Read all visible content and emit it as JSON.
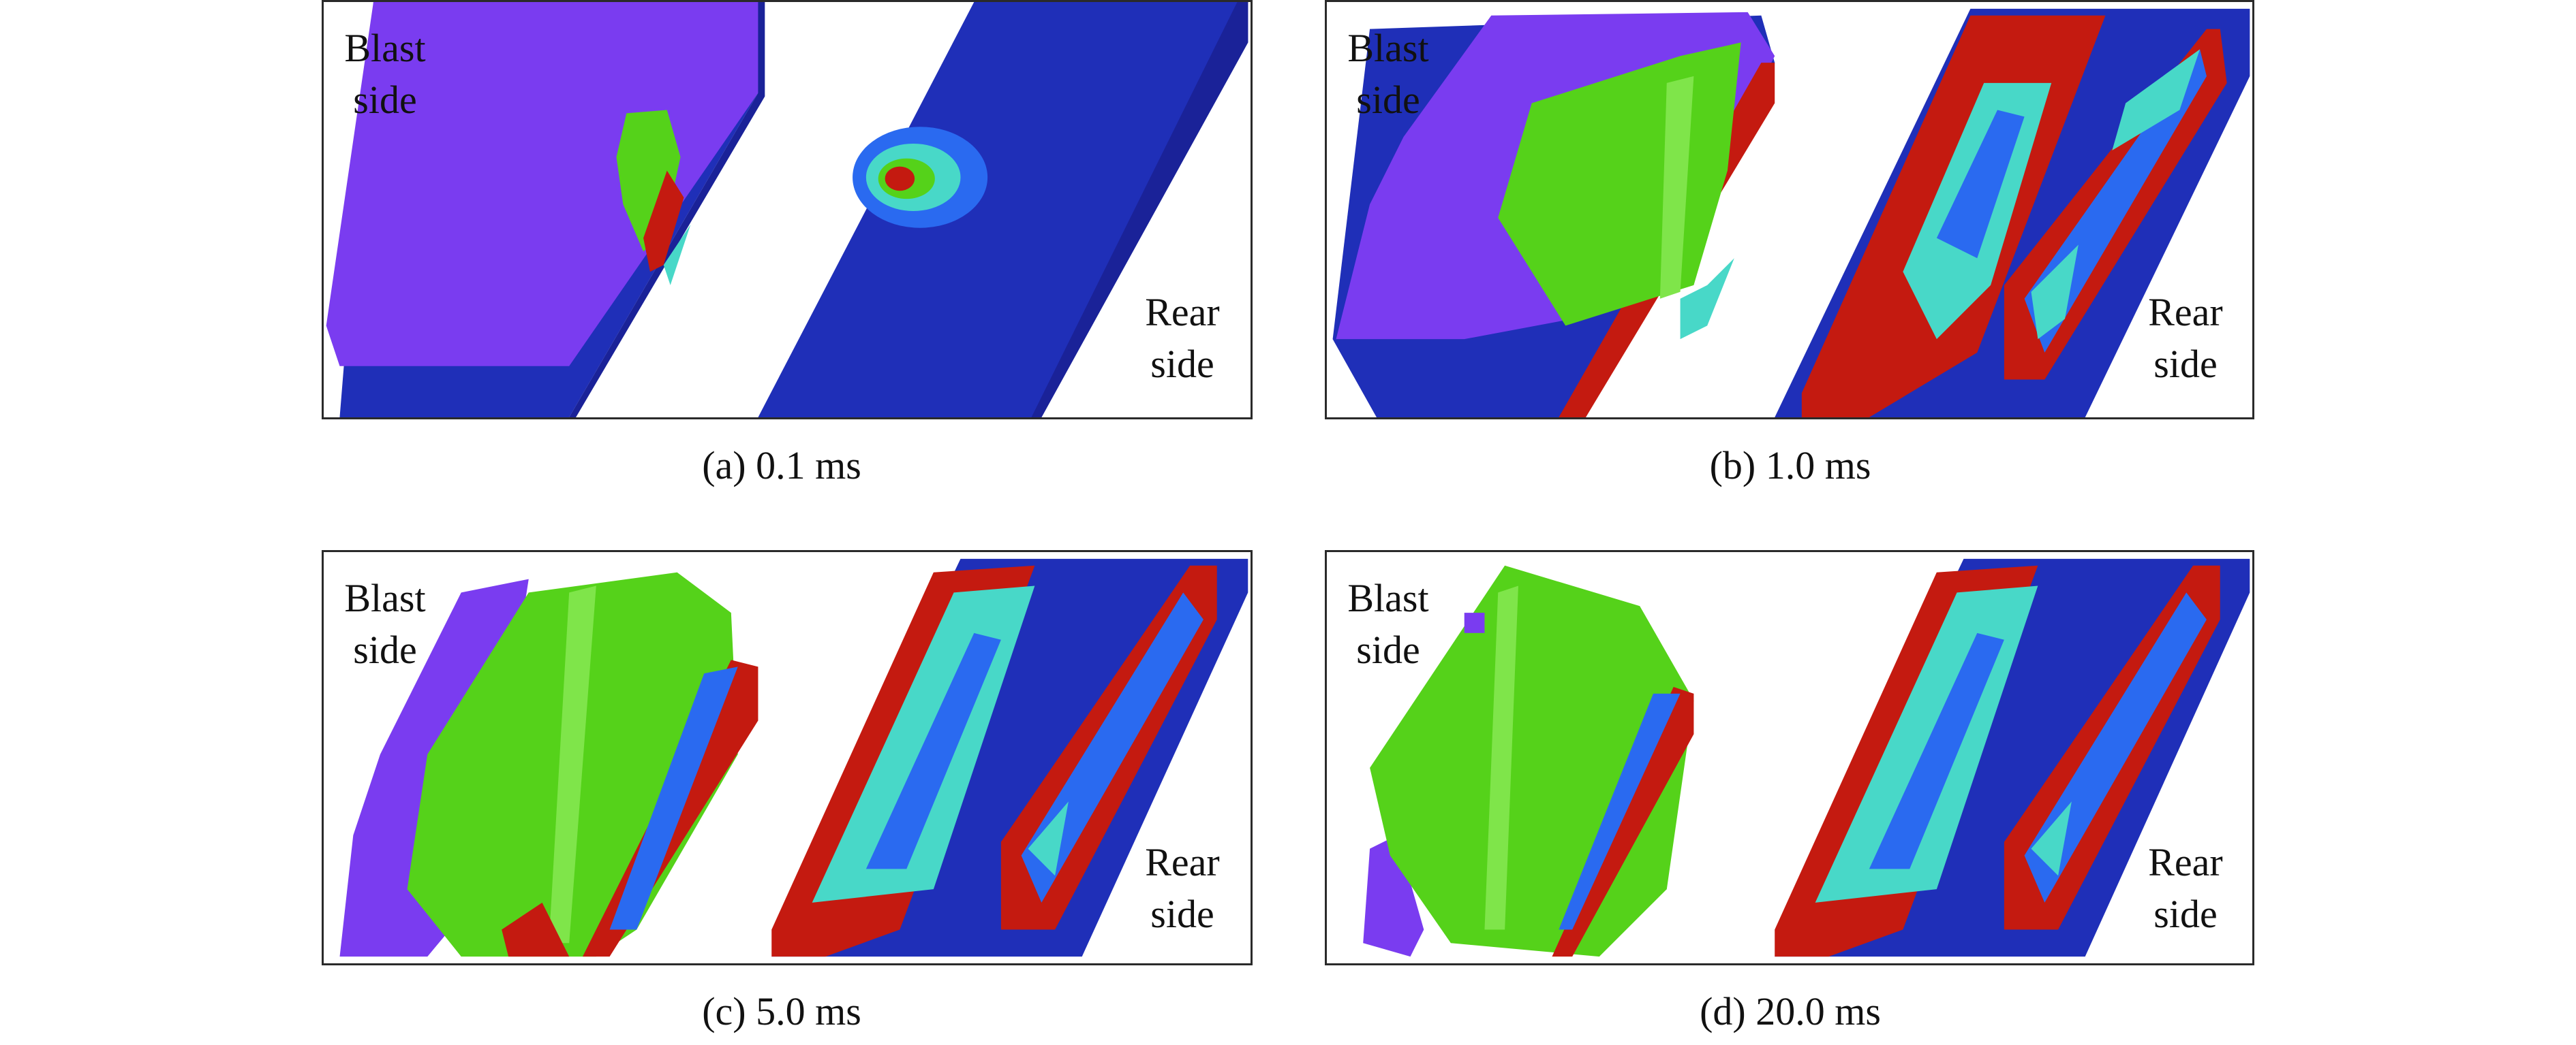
{
  "figure": {
    "panels": [
      {
        "caption": "(a) 0.1 ms",
        "blast_label": [
          "Blast",
          "side"
        ],
        "rear_label": [
          "Rear",
          "side"
        ]
      },
      {
        "caption": "(b) 1.0 ms",
        "blast_label": [
          "Blast",
          "side"
        ],
        "rear_label": [
          "Rear",
          "side"
        ]
      },
      {
        "caption": "(c) 5.0 ms",
        "blast_label": [
          "Blast",
          "side"
        ],
        "rear_label": [
          "Rear",
          "side"
        ]
      },
      {
        "caption": "(d) 20.0 ms",
        "blast_label": [
          "Blast",
          "side"
        ],
        "rear_label": [
          "Rear",
          "side"
        ]
      }
    ],
    "colors": {
      "violet": "#7a3cf0",
      "deep_blue": "#1f2fb8",
      "green": "#55d21a",
      "red": "#c41a10",
      "cyan": "#48d8c8",
      "blue": "#2a6af0"
    }
  }
}
